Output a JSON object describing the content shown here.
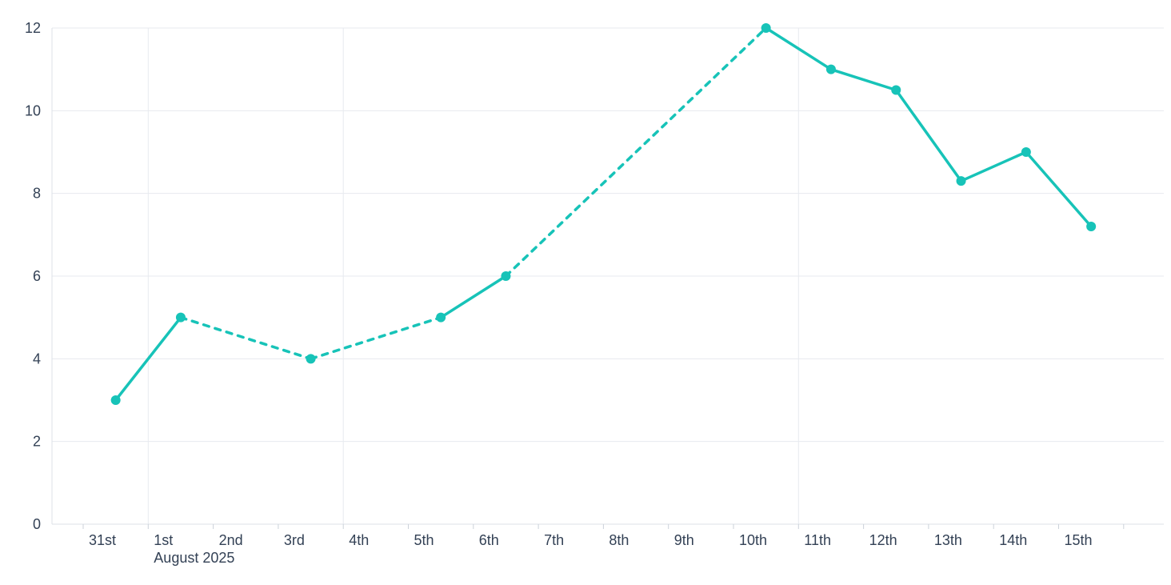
{
  "chart_data": {
    "type": "line",
    "title": "",
    "x_axis": {
      "tick_labels": [
        "31st",
        "1st",
        "2nd",
        "3rd",
        "4th",
        "5th",
        "6th",
        "7th",
        "8th",
        "9th",
        "10th",
        "11th",
        "12th",
        "13th",
        "14th",
        "15th"
      ],
      "month_label": "August 2025"
    },
    "y_axis": {
      "ticks": [
        0,
        2,
        4,
        6,
        8,
        10,
        12
      ],
      "ylim": [
        0,
        12
      ]
    },
    "series": [
      {
        "name": "series-1",
        "color": "#17C3B8",
        "marker": "circle",
        "points": [
          {
            "day": 0,
            "label": "31st",
            "value": 3,
            "dash_to_next": false
          },
          {
            "day": 1,
            "label": "1st",
            "value": 5,
            "dash_to_next": true
          },
          {
            "day": 3,
            "label": "3rd",
            "value": 4,
            "dash_to_next": true
          },
          {
            "day": 5,
            "label": "5th",
            "value": 5,
            "dash_to_next": false
          },
          {
            "day": 6,
            "label": "6th",
            "value": 6,
            "dash_to_next": true
          },
          {
            "day": 10,
            "label": "10th",
            "value": 12,
            "dash_to_next": false
          },
          {
            "day": 11,
            "label": "11th",
            "value": 11,
            "dash_to_next": false
          },
          {
            "day": 12,
            "label": "12th",
            "value": 10.5,
            "dash_to_next": false
          },
          {
            "day": 13,
            "label": "13th",
            "value": 8.3,
            "dash_to_next": false
          },
          {
            "day": 14,
            "label": "14th",
            "value": 9,
            "dash_to_next": false
          },
          {
            "day": 15,
            "label": "15th",
            "value": 7.2,
            "dash_to_next": false
          }
        ]
      }
    ],
    "grid": {
      "horizontal": true,
      "vertical_day_starts": [
        1,
        4,
        11
      ],
      "legend": "none"
    },
    "colors": {
      "line": "#17C3B8",
      "grid": "#E7EAEF",
      "axis": "#DCE1E7",
      "tick": "#CCD2DA",
      "label": "#334155",
      "background": "#FFFFFF"
    }
  }
}
